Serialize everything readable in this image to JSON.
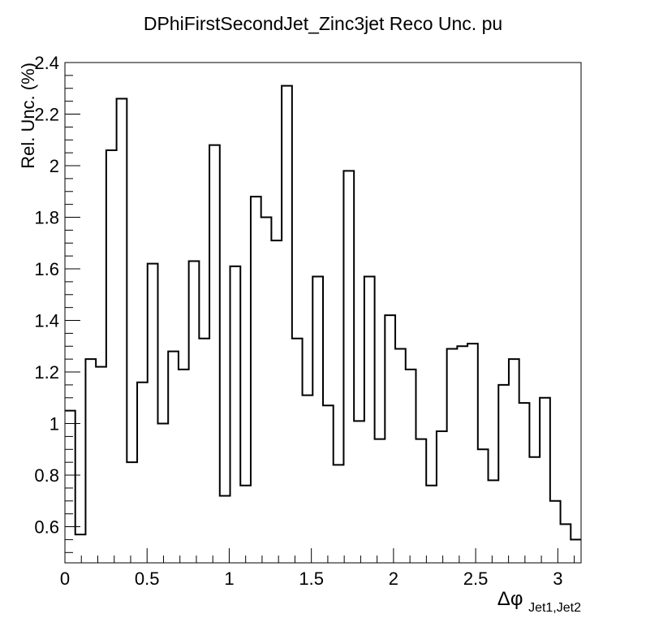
{
  "chart_data": {
    "type": "line",
    "style": "step-histogram",
    "title": "DPhiFirstSecondJet_Zinc3jet Reco Unc. pu",
    "ylabel": "Rel. Unc. (%)",
    "xlabel": {
      "symbol": "Δφ",
      "subscript": "Jet1,Jet2"
    },
    "xlim": [
      0,
      3.1416
    ],
    "ylim": [
      0.46,
      2.4
    ],
    "x_ticks": [
      {
        "value": 0,
        "label": "0"
      },
      {
        "value": 0.5,
        "label": "0.5"
      },
      {
        "value": 1,
        "label": "1"
      },
      {
        "value": 1.5,
        "label": "1.5"
      },
      {
        "value": 2,
        "label": "2"
      },
      {
        "value": 2.5,
        "label": "2.5"
      },
      {
        "value": 3,
        "label": "3"
      }
    ],
    "y_ticks": [
      {
        "value": 0.6,
        "label": "0.6"
      },
      {
        "value": 0.8,
        "label": "0.8"
      },
      {
        "value": 1.0,
        "label": "1"
      },
      {
        "value": 1.2,
        "label": "1.2"
      },
      {
        "value": 1.4,
        "label": "1.4"
      },
      {
        "value": 1.6,
        "label": "1.6"
      },
      {
        "value": 1.8,
        "label": "1.8"
      },
      {
        "value": 2.0,
        "label": "2"
      },
      {
        "value": 2.2,
        "label": "2.2"
      },
      {
        "value": 2.4,
        "label": "2.4"
      }
    ],
    "grid": false,
    "legend": "none",
    "line_color": "#000000",
    "n_bins": 50,
    "series": [
      {
        "values": [
          1.05,
          0.57,
          1.25,
          1.22,
          2.06,
          2.26,
          0.85,
          1.16,
          1.62,
          1.0,
          1.28,
          1.21,
          1.63,
          1.33,
          2.08,
          0.72,
          1.61,
          0.76,
          1.88,
          1.8,
          1.71,
          2.31,
          1.33,
          1.11,
          1.57,
          1.07,
          0.84,
          1.98,
          1.01,
          1.57,
          0.94,
          1.42,
          1.29,
          1.21,
          0.94,
          0.76,
          0.97,
          1.29,
          1.3,
          1.31,
          0.9,
          0.78,
          1.15,
          1.25,
          1.08,
          0.87,
          1.1,
          0.7,
          0.61,
          0.55
        ]
      }
    ]
  }
}
